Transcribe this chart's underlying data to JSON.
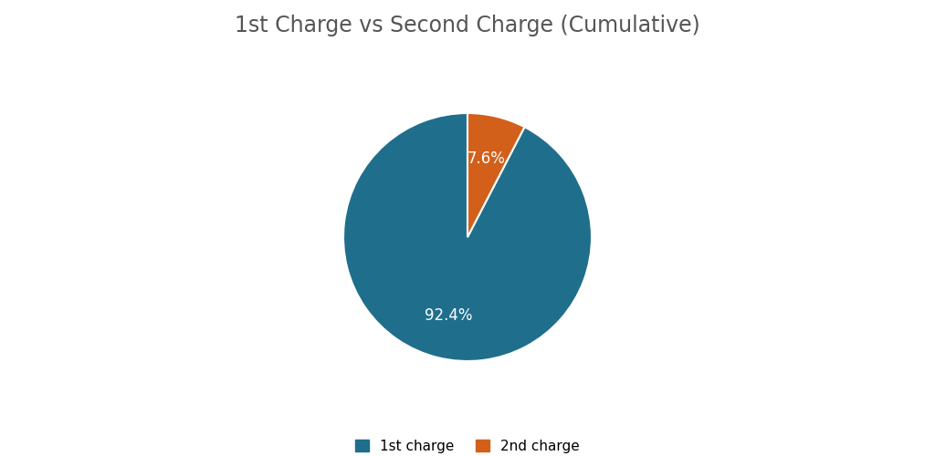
{
  "title": "1st Charge vs Second Charge (Cumulative)",
  "title_fontsize": 17,
  "title_color": "#555555",
  "slices": [
    92.4,
    7.6
  ],
  "labels": [
    "1st charge",
    "2nd charge"
  ],
  "colors": [
    "#1f6e8c",
    "#d2601a"
  ],
  "autopct_labels": [
    "92.4%",
    "7.6%"
  ],
  "autopct_fontsize": 12,
  "autopct_colors": [
    "white",
    "white"
  ],
  "legend_labels": [
    "1st charge",
    "2nd charge"
  ],
  "legend_fontsize": 11,
  "background_color": "#ffffff",
  "startangle": 90
}
